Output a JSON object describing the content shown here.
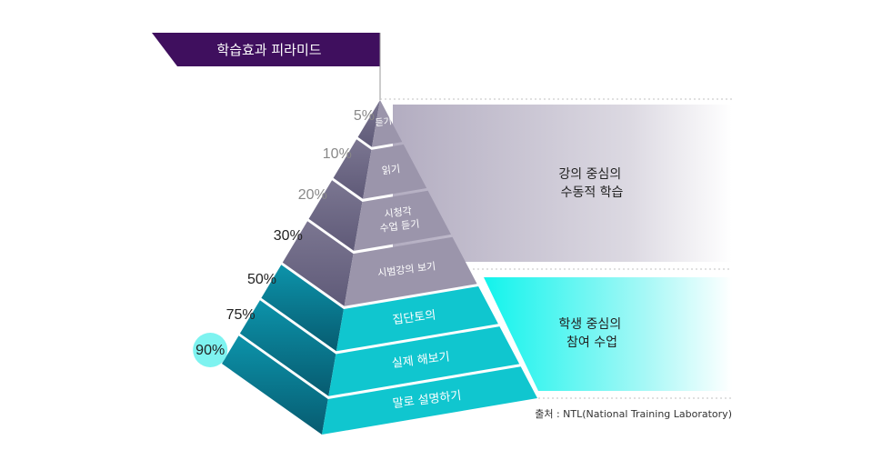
{
  "title": "학습효과 피라미드",
  "levels": [
    {
      "pct": "5%",
      "label": [
        "듣기"
      ]
    },
    {
      "pct": "10%",
      "label": [
        "읽기"
      ]
    },
    {
      "pct": "20%",
      "label": [
        "시청각",
        "수업 듣기"
      ]
    },
    {
      "pct": "30%",
      "label": [
        "시범강의 보기"
      ]
    },
    {
      "pct": "50%",
      "label": [
        "집단토의"
      ]
    },
    {
      "pct": "75%",
      "label": [
        "실제 해보기"
      ]
    },
    {
      "pct": "90%",
      "label": [
        "말로 설명하기"
      ]
    }
  ],
  "groups": [
    {
      "label": [
        "강의 중심의",
        "수동적 학습"
      ]
    },
    {
      "label": [
        "학생 중심의",
        "참여 수업"
      ]
    }
  ],
  "source": "출처 : NTL(National Training Laboratory)",
  "colors": {
    "title_bg": "#3f0f5e",
    "passive_front": "#9b95ab",
    "passive_side": "#6e6985",
    "active_front": "#10c6cf",
    "active_side_top": "#0c8fa6",
    "active_side_bottom": "#0a5f73",
    "passive_band": "#c8c4d2",
    "active_band": "#1ff4ee",
    "highlight_circle": "#7ef3f0",
    "pct_passive": "#888888",
    "pct_active": "#222222"
  }
}
